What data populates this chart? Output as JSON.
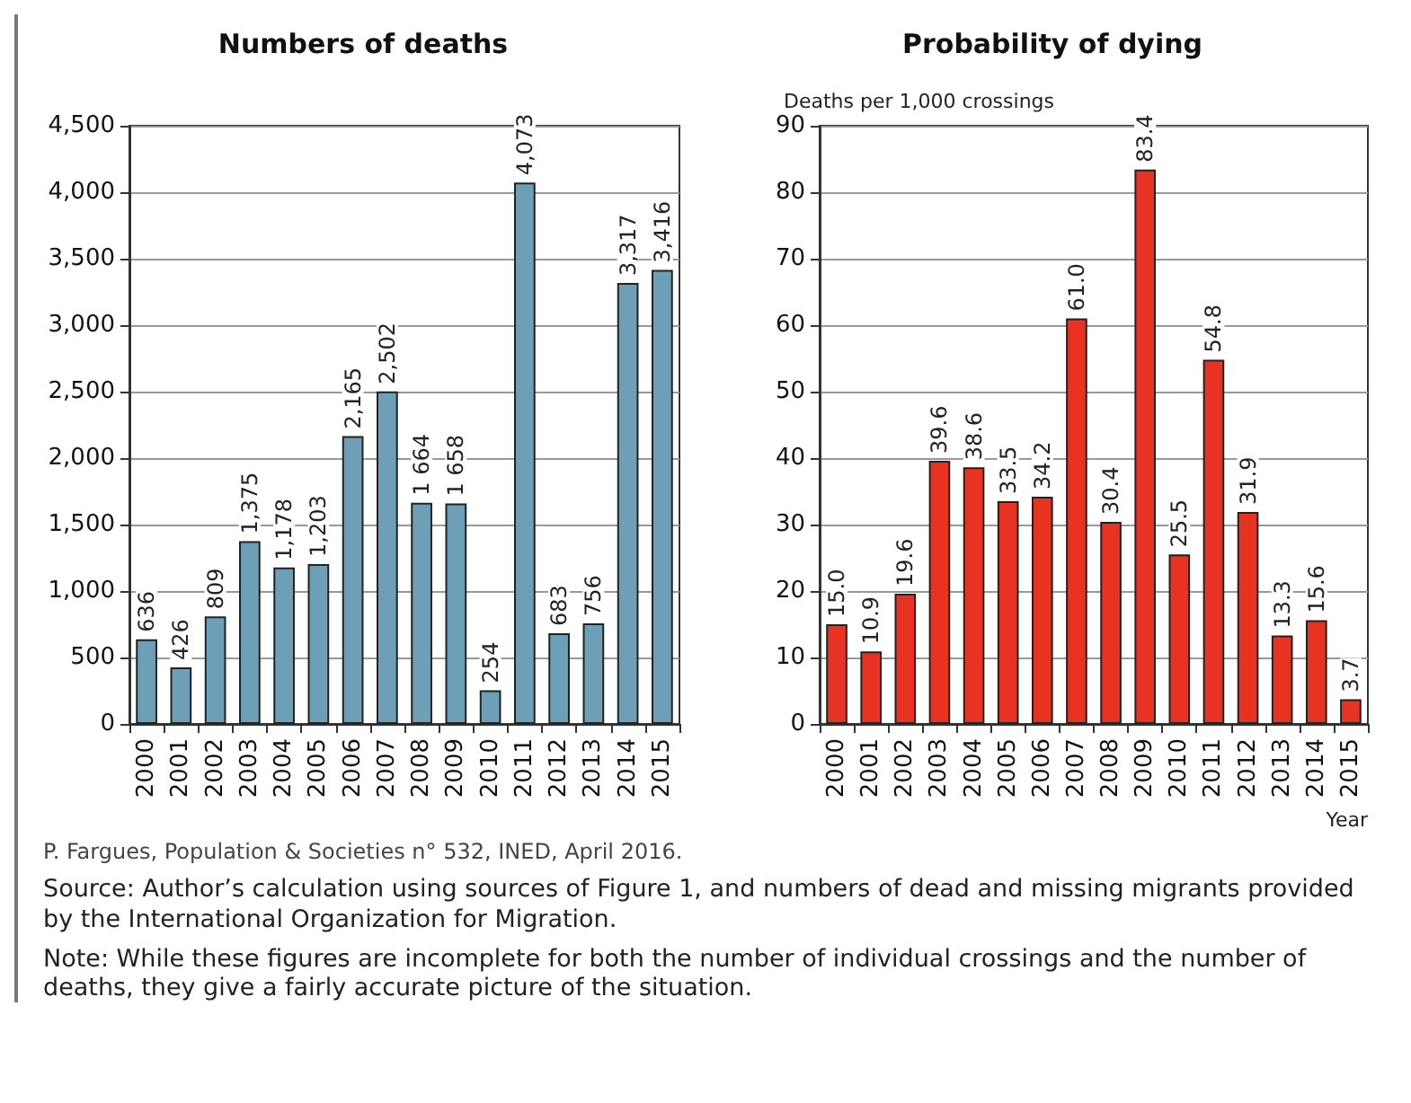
{
  "chart_data": [
    {
      "type": "bar",
      "title": "Numbers of deaths",
      "categories": [
        "2000",
        "2001",
        "2002",
        "2003",
        "2004",
        "2005",
        "2006",
        "2007",
        "2008",
        "2009",
        "2010",
        "2011",
        "2012",
        "2013",
        "2014",
        "2015"
      ],
      "values": [
        636,
        426,
        809,
        1375,
        1178,
        1203,
        2165,
        2502,
        1664,
        1658,
        254,
        4073,
        683,
        756,
        3317,
        3416
      ],
      "value_labels": [
        "636",
        "426",
        "809",
        "1,375",
        "1,178",
        "1,203",
        "2,165",
        "2,502",
        "1 664",
        "1 658",
        "254",
        "4,073",
        "683",
        "756",
        "3,317",
        "3,416"
      ],
      "color": "#6d9fb6",
      "ylim": [
        0,
        4500
      ],
      "yticks": [
        0,
        500,
        {
          "value": 1000,
          "label": "1,000"
        },
        {
          "value": 1500,
          "label": "1,500"
        },
        {
          "value": 2000,
          "label": "2,000"
        },
        {
          "value": 2500,
          "label": "2,500"
        },
        {
          "value": 3000,
          "label": "3,000"
        },
        {
          "value": 3500,
          "label": "3,500"
        },
        {
          "value": 4000,
          "label": "4,000"
        },
        {
          "value": 4500,
          "label": "4,500"
        }
      ],
      "grid": "y",
      "annotations": [
        "P. Fargues, Population & Societies n° 532, INED, April 2016.",
        "Source: Author’s calculation using sources of Figure 1, and numbers of dead and missing migrants provided by the International Organization for Migration.",
        "Note: While these figures are incomplete for both the number of individual crossings and the number of deaths, they give a fairly accurate picture of the situation."
      ]
    },
    {
      "type": "bar",
      "title": "Probability of dying",
      "ylabel": "Deaths per 1,000 crossings",
      "xlabel": "Year",
      "categories": [
        "2000",
        "2001",
        "2002",
        "2003",
        "2004",
        "2005",
        "2006",
        "2007",
        "2008",
        "2009",
        "2010",
        "2011",
        "2012",
        "2013",
        "2014",
        "2015"
      ],
      "values": [
        15.0,
        10.9,
        19.6,
        39.6,
        38.6,
        33.5,
        34.2,
        61.0,
        30.4,
        83.4,
        25.5,
        54.8,
        31.9,
        13.3,
        15.6,
        3.7
      ],
      "value_labels": [
        "15.0",
        "10.9",
        "19.6",
        "39.6",
        "38.6",
        "33.5",
        "34.2",
        "61.0",
        "30.4",
        "83.4",
        "25.5",
        "54.8",
        "31.9",
        "13.3",
        "15.6",
        "3.7"
      ],
      "color": "#e83323",
      "ylim": [
        0,
        90
      ],
      "yticks": [
        0,
        10,
        20,
        30,
        40,
        50,
        60,
        70,
        80,
        90
      ],
      "grid": "y"
    }
  ]
}
